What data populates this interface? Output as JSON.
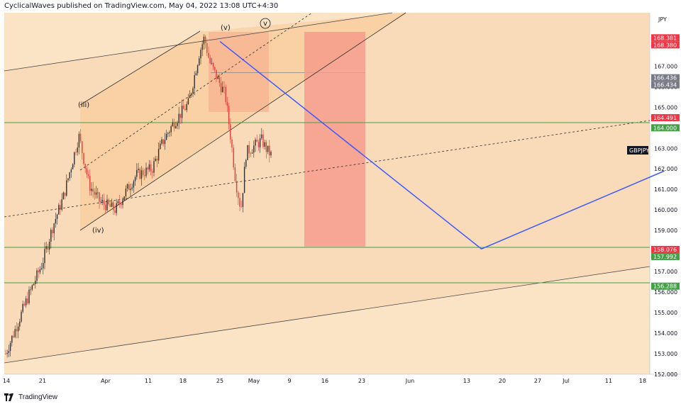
{
  "header": {
    "published": "CyclicalWaves published on TradingView.com, May 04, 2022 13:08 UTC+4:30"
  },
  "footer": {
    "brand": "TradingView"
  },
  "colors": {
    "background": "#fbe3c6",
    "channel_fill": "#f9cfa0",
    "box_fill": "#f6a98a",
    "target_box_fill": "#f6a08c",
    "up_candle": "#2e2e2e",
    "down_candle": "#e53935",
    "projection_line": "#3d5afe",
    "support_line": "#43a047",
    "label_red": "#f23645",
    "label_gray": "#787b86",
    "label_green": "#43a047",
    "label_black": "#131722"
  },
  "chart_data": {
    "type": "candlestick",
    "symbol_label": "GBPJPY",
    "currency": "JPY",
    "ylim": [
      152.0,
      169.6
    ],
    "x_tick_labels": [
      "14",
      "21",
      "Apr",
      "11",
      "18",
      "25",
      "May",
      "9",
      "16",
      "23",
      "Jun",
      "13",
      "20",
      "27",
      "Jul",
      "11",
      "18"
    ],
    "y_tick_labels": [
      "152.000",
      "153.000",
      "154.000",
      "155.000",
      "156.000",
      "157.000",
      "158.000",
      "159.000",
      "160.000",
      "161.000",
      "162.000",
      "163.000",
      "164.000",
      "165.000",
      "166.000",
      "167.000",
      "168.000"
    ],
    "price_labels": [
      {
        "text": "168.381",
        "value": 168.381,
        "color": "red"
      },
      {
        "text": "168.380",
        "value": 168.38,
        "color": "red"
      },
      {
        "text": "166.436",
        "value": 166.436,
        "color": "gray"
      },
      {
        "text": "166.434",
        "value": 166.434,
        "color": "gray"
      },
      {
        "text": "164.491",
        "value": 164.491,
        "color": "red"
      },
      {
        "text": "164.000",
        "value": 164.0,
        "color": "green"
      },
      {
        "text": "158.076",
        "value": 158.076,
        "color": "red"
      },
      {
        "text": "157.992",
        "value": 157.992,
        "color": "green"
      },
      {
        "text": "156.288",
        "value": 156.288,
        "color": "green"
      }
    ],
    "horizontal_levels": [
      164.0,
      157.992,
      156.288
    ],
    "wave_labels": [
      "(iii)",
      "(iv)",
      "(v)",
      "v"
    ],
    "close_series": [
      {
        "date": "2022-03-14",
        "value": 153.0
      },
      {
        "date": "2022-03-16",
        "value": 154.3
      },
      {
        "date": "2022-03-18",
        "value": 155.6
      },
      {
        "date": "2022-03-21",
        "value": 157.4
      },
      {
        "date": "2022-03-23",
        "value": 159.2
      },
      {
        "date": "2022-03-25",
        "value": 160.6
      },
      {
        "date": "2022-03-28",
        "value": 163.6
      },
      {
        "date": "2022-03-30",
        "value": 161.2
      },
      {
        "date": "2022-04-01",
        "value": 160.4
      },
      {
        "date": "2022-04-04",
        "value": 160.0
      },
      {
        "date": "2022-04-06",
        "value": 160.9
      },
      {
        "date": "2022-04-08",
        "value": 161.7
      },
      {
        "date": "2022-04-11",
        "value": 162.0
      },
      {
        "date": "2022-04-13",
        "value": 163.3
      },
      {
        "date": "2022-04-15",
        "value": 164.2
      },
      {
        "date": "2022-04-18",
        "value": 165.2
      },
      {
        "date": "2022-04-20",
        "value": 167.6
      },
      {
        "date": "2022-04-21",
        "value": 168.4
      },
      {
        "date": "2022-04-22",
        "value": 167.2
      },
      {
        "date": "2022-04-25",
        "value": 165.6
      },
      {
        "date": "2022-04-26",
        "value": 163.6
      },
      {
        "date": "2022-04-27",
        "value": 161.4
      },
      {
        "date": "2022-04-28",
        "value": 160.0
      },
      {
        "date": "2022-04-29",
        "value": 162.8
      },
      {
        "date": "2022-05-02",
        "value": 163.4
      },
      {
        "date": "2022-05-03",
        "value": 162.9
      },
      {
        "date": "2022-05-04",
        "value": 162.6
      }
    ],
    "projection_path": [
      {
        "date": "2022-04-24",
        "value": 168.2
      },
      {
        "date": "2022-06-13",
        "value": 158.1
      },
      {
        "date": "2022-07-18",
        "value": 161.9
      }
    ]
  }
}
